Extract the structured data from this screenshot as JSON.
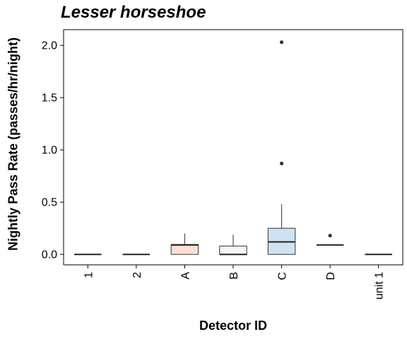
{
  "chart_data": {
    "type": "boxplot",
    "title": "Lesser horseshoe",
    "xlabel": "Detector ID",
    "ylabel": "Nightly Pass Rate (passes/hr/night)",
    "ylim": [
      -0.1,
      2.15
    ],
    "yticks": [
      0.0,
      0.5,
      1.0,
      1.5,
      2.0
    ],
    "ytick_labels": [
      "0.0",
      "0.5",
      "1.0",
      "1.5",
      "2.0"
    ],
    "grid": false,
    "legend": "none",
    "categories": [
      "1",
      "2",
      "A",
      "B",
      "C",
      "D",
      "unit 1"
    ],
    "boxes": [
      {
        "category": "1",
        "whisker_low": 0.0,
        "q1": 0.0,
        "median": 0.0,
        "q3": 0.0,
        "whisker_high": 0.0,
        "outliers": [],
        "fill": "#ffffff"
      },
      {
        "category": "2",
        "whisker_low": 0.0,
        "q1": 0.0,
        "median": 0.0,
        "q3": 0.0,
        "whisker_high": 0.0,
        "outliers": [],
        "fill": "#ffffff"
      },
      {
        "category": "A",
        "whisker_low": 0.0,
        "q1": 0.0,
        "median": 0.09,
        "q3": 0.095,
        "whisker_high": 0.2,
        "outliers": [],
        "fill": "#fde0d2"
      },
      {
        "category": "B",
        "whisker_low": 0.0,
        "q1": 0.0,
        "median": 0.0,
        "q3": 0.08,
        "whisker_high": 0.19,
        "outliers": [],
        "fill": "#f6f6f6"
      },
      {
        "category": "C",
        "whisker_low": 0.0,
        "q1": 0.0,
        "median": 0.12,
        "q3": 0.25,
        "whisker_high": 0.48,
        "outliers": [
          0.87,
          2.03
        ],
        "fill": "#d0e2ef"
      },
      {
        "category": "D",
        "whisker_low": 0.09,
        "q1": 0.09,
        "median": 0.09,
        "q3": 0.09,
        "whisker_high": 0.09,
        "outliers": [
          0.18
        ],
        "fill": "#ffffff"
      },
      {
        "category": "unit 1",
        "whisker_low": 0.0,
        "q1": 0.0,
        "median": 0.0,
        "q3": 0.0,
        "whisker_high": 0.0,
        "outliers": [],
        "fill": "#ffffff"
      }
    ]
  }
}
